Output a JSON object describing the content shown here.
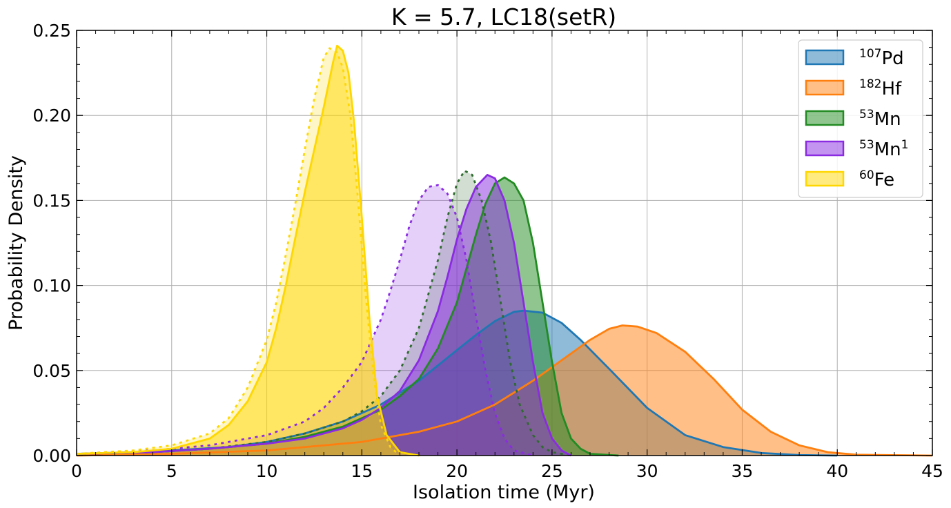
{
  "chart_data": {
    "type": "area",
    "title": "K = 5.7, LC18(setR)",
    "xlabel": "Isolation time (Myr)",
    "ylabel": "Probability Density",
    "xlim": [
      0,
      45
    ],
    "ylim": [
      0,
      0.25
    ],
    "xticks": [
      0,
      5,
      10,
      15,
      20,
      25,
      30,
      35,
      40,
      45
    ],
    "xtick_labels": [
      "0",
      "5",
      "10",
      "15",
      "20",
      "25",
      "30",
      "35",
      "40",
      "45"
    ],
    "yticks": [
      0,
      0.05,
      0.1,
      0.15,
      0.2,
      0.25
    ],
    "ytick_labels": [
      "0.00",
      "0.05",
      "0.10",
      "0.15",
      "0.20",
      "0.25"
    ],
    "grid": true,
    "legend_position": "top-right",
    "series": [
      {
        "key": "pd107",
        "legend_sup": "107",
        "legend_base": "Pd",
        "color": "#1f77b4",
        "style": "solid",
        "points": [
          [
            0,
            0.001
          ],
          [
            3,
            0.002
          ],
          [
            5,
            0.003
          ],
          [
            8,
            0.005
          ],
          [
            10,
            0.008
          ],
          [
            12,
            0.013
          ],
          [
            14,
            0.02
          ],
          [
            16,
            0.03
          ],
          [
            18,
            0.044
          ],
          [
            20,
            0.062
          ],
          [
            21,
            0.071
          ],
          [
            22,
            0.079
          ],
          [
            23,
            0.0845
          ],
          [
            23.5,
            0.0852
          ],
          [
            24.5,
            0.084
          ],
          [
            25.5,
            0.078
          ],
          [
            26.5,
            0.068
          ],
          [
            28,
            0.051
          ],
          [
            30,
            0.028
          ],
          [
            32,
            0.012
          ],
          [
            34,
            0.005
          ],
          [
            36,
            0.0015
          ],
          [
            38,
            0.0003
          ],
          [
            40,
            0
          ]
        ]
      },
      {
        "key": "hf182",
        "legend_sup": "182",
        "legend_base": "Hf",
        "color": "#ff7f0e",
        "style": "solid",
        "points": [
          [
            0,
            0.0
          ],
          [
            5,
            0.001
          ],
          [
            10,
            0.003
          ],
          [
            15,
            0.008
          ],
          [
            18,
            0.014
          ],
          [
            20,
            0.02
          ],
          [
            22,
            0.03
          ],
          [
            24,
            0.044
          ],
          [
            26,
            0.06
          ],
          [
            27,
            0.068
          ],
          [
            28,
            0.0745
          ],
          [
            28.7,
            0.0765
          ],
          [
            29.5,
            0.0758
          ],
          [
            30.5,
            0.072
          ],
          [
            32,
            0.061
          ],
          [
            33.5,
            0.045
          ],
          [
            35,
            0.027
          ],
          [
            36.5,
            0.014
          ],
          [
            38,
            0.006
          ],
          [
            39.5,
            0.002
          ],
          [
            41,
            0.0005
          ],
          [
            45,
            0
          ]
        ]
      },
      {
        "key": "mn53_solid",
        "legend_sup": "53",
        "legend_base": "Mn",
        "color": "#228b22",
        "style": "solid",
        "points": [
          [
            0,
            0.001
          ],
          [
            4,
            0.002
          ],
          [
            7,
            0.004
          ],
          [
            10,
            0.007
          ],
          [
            12,
            0.011
          ],
          [
            14,
            0.017
          ],
          [
            16,
            0.027
          ],
          [
            17,
            0.035
          ],
          [
            18,
            0.045
          ],
          [
            19,
            0.063
          ],
          [
            20,
            0.09
          ],
          [
            20.5,
            0.11
          ],
          [
            21,
            0.13
          ],
          [
            21.5,
            0.148
          ],
          [
            22,
            0.16
          ],
          [
            22.5,
            0.1635
          ],
          [
            23,
            0.16
          ],
          [
            23.5,
            0.15
          ],
          [
            24,
            0.125
          ],
          [
            24.5,
            0.09
          ],
          [
            25,
            0.055
          ],
          [
            25.5,
            0.025
          ],
          [
            26,
            0.01
          ],
          [
            26.5,
            0.004
          ],
          [
            27,
            0.001
          ],
          [
            28.5,
            0
          ]
        ]
      },
      {
        "key": "mn53_dashed",
        "legend_sup": "",
        "legend_base": "",
        "color": "#2e6b2e",
        "style": "dashed",
        "points": [
          [
            0,
            0.001
          ],
          [
            4,
            0.002
          ],
          [
            7,
            0.004
          ],
          [
            10,
            0.008
          ],
          [
            12,
            0.013
          ],
          [
            14,
            0.02
          ],
          [
            15,
            0.026
          ],
          [
            16,
            0.035
          ],
          [
            17,
            0.05
          ],
          [
            18,
            0.075
          ],
          [
            19,
            0.115
          ],
          [
            19.5,
            0.14
          ],
          [
            20,
            0.16
          ],
          [
            20.4,
            0.1675
          ],
          [
            20.8,
            0.165
          ],
          [
            21.3,
            0.15
          ],
          [
            21.8,
            0.125
          ],
          [
            22.3,
            0.09
          ],
          [
            22.8,
            0.055
          ],
          [
            23.3,
            0.03
          ],
          [
            24,
            0.012
          ],
          [
            24.5,
            0.005
          ],
          [
            25,
            0.002
          ],
          [
            26,
            0
          ]
        ]
      },
      {
        "key": "mn53b_solid",
        "legend_sup": "53",
        "legend_base": "Mn",
        "legend_sup2": "1",
        "color": "#8a2be2",
        "style": "solid",
        "points": [
          [
            0,
            0.001
          ],
          [
            4,
            0.002
          ],
          [
            7,
            0.004
          ],
          [
            10,
            0.007
          ],
          [
            12,
            0.01
          ],
          [
            14,
            0.016
          ],
          [
            15,
            0.021
          ],
          [
            16,
            0.028
          ],
          [
            17,
            0.038
          ],
          [
            18,
            0.056
          ],
          [
            19,
            0.085
          ],
          [
            19.5,
            0.105
          ],
          [
            20,
            0.127
          ],
          [
            20.5,
            0.145
          ],
          [
            21,
            0.158
          ],
          [
            21.6,
            0.165
          ],
          [
            22,
            0.163
          ],
          [
            22.5,
            0.15
          ],
          [
            23,
            0.125
          ],
          [
            23.5,
            0.09
          ],
          [
            24,
            0.055
          ],
          [
            24.5,
            0.025
          ],
          [
            25,
            0.01
          ],
          [
            25.5,
            0.003
          ],
          [
            26,
            0
          ]
        ]
      },
      {
        "key": "mn53b_dashed",
        "legend_sup": "",
        "legend_base": "",
        "color": "#8a2be2",
        "style": "dashed",
        "points": [
          [
            0,
            0.001
          ],
          [
            4,
            0.003
          ],
          [
            7,
            0.006
          ],
          [
            10,
            0.012
          ],
          [
            12,
            0.02
          ],
          [
            13,
            0.028
          ],
          [
            14,
            0.04
          ],
          [
            15,
            0.055
          ],
          [
            16,
            0.08
          ],
          [
            16.5,
            0.097
          ],
          [
            17,
            0.115
          ],
          [
            17.5,
            0.135
          ],
          [
            18,
            0.15
          ],
          [
            18.5,
            0.158
          ],
          [
            19,
            0.159
          ],
          [
            19.5,
            0.154
          ],
          [
            20,
            0.14
          ],
          [
            20.5,
            0.115
          ],
          [
            21,
            0.082
          ],
          [
            21.5,
            0.05
          ],
          [
            22,
            0.025
          ],
          [
            22.5,
            0.01
          ],
          [
            23,
            0.003
          ],
          [
            24,
            0
          ]
        ]
      },
      {
        "key": "fe60_solid",
        "legend_sup": "60",
        "legend_base": "Fe",
        "color": "#ffd700",
        "style": "solid",
        "points": [
          [
            0,
            0.001
          ],
          [
            3,
            0.002
          ],
          [
            5,
            0.004
          ],
          [
            7,
            0.01
          ],
          [
            8,
            0.018
          ],
          [
            9,
            0.032
          ],
          [
            10,
            0.055
          ],
          [
            10.5,
            0.075
          ],
          [
            11,
            0.1
          ],
          [
            11.5,
            0.128
          ],
          [
            12,
            0.155
          ],
          [
            12.5,
            0.18
          ],
          [
            13,
            0.205
          ],
          [
            13.5,
            0.232
          ],
          [
            13.7,
            0.241
          ],
          [
            14,
            0.238
          ],
          [
            14.3,
            0.225
          ],
          [
            14.6,
            0.195
          ],
          [
            15,
            0.14
          ],
          [
            15.4,
            0.08
          ],
          [
            15.8,
            0.035
          ],
          [
            16.3,
            0.012
          ],
          [
            17,
            0.002
          ],
          [
            18,
            0
          ]
        ]
      },
      {
        "key": "fe60_dashed",
        "legend_sup": "",
        "legend_base": "",
        "color": "#ffd700",
        "style": "dashed",
        "points": [
          [
            0,
            0.001
          ],
          [
            3,
            0.003
          ],
          [
            5,
            0.006
          ],
          [
            7,
            0.013
          ],
          [
            8,
            0.022
          ],
          [
            9,
            0.04
          ],
          [
            10,
            0.068
          ],
          [
            10.5,
            0.09
          ],
          [
            11,
            0.118
          ],
          [
            11.5,
            0.148
          ],
          [
            12,
            0.18
          ],
          [
            12.5,
            0.21
          ],
          [
            13,
            0.234
          ],
          [
            13.3,
            0.2395
          ],
          [
            13.7,
            0.237
          ],
          [
            14,
            0.228
          ],
          [
            14.4,
            0.2
          ],
          [
            14.8,
            0.15
          ],
          [
            15.2,
            0.095
          ],
          [
            15.6,
            0.048
          ],
          [
            16,
            0.018
          ],
          [
            16.5,
            0.005
          ],
          [
            17,
            0
          ]
        ]
      }
    ]
  }
}
